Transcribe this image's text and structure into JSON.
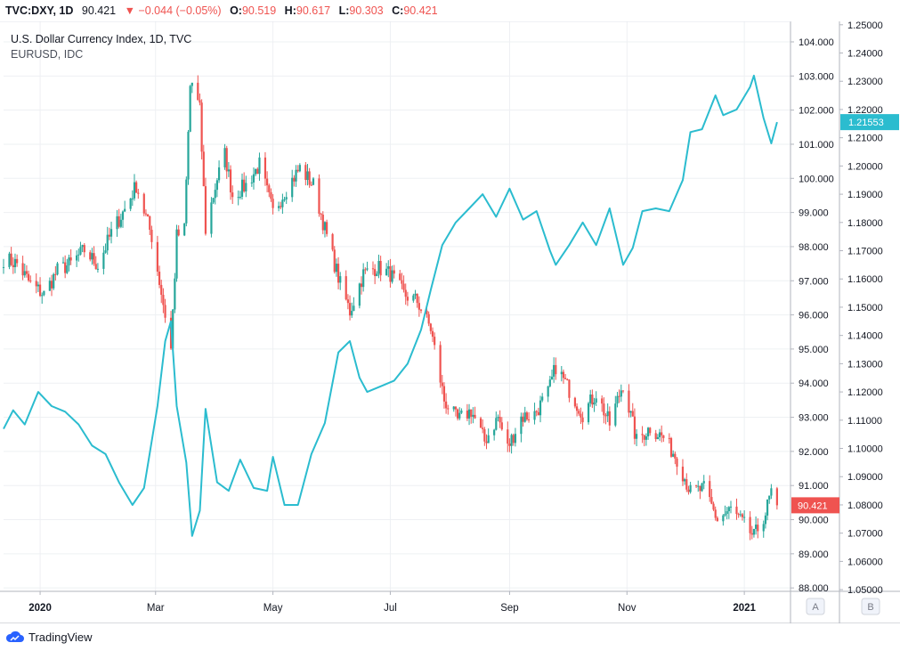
{
  "header": {
    "symbol": "TVC:DXY, 1D",
    "last": "90.421",
    "change": "▼ −0.044 (−0.05%)",
    "o_label": "O:",
    "o_value": "90.519",
    "h_label": "H:",
    "h_value": "90.617",
    "l_label": "L:",
    "l_value": "90.303",
    "c_label": "C:",
    "c_value": "90.421"
  },
  "legend": {
    "main": "U.S. Dollar Currency Index, 1D, TVC",
    "secondary": "EURUSD, IDC"
  },
  "footer": {
    "brand": "TradingView"
  },
  "colors": {
    "up": "#26a69a",
    "down": "#ef5350",
    "eurusd": "#2bbccf",
    "grid": "#eef0f3",
    "axis": "#b2b5be",
    "text": "#131722"
  },
  "icons": {
    "brand_logo": "tradingview-cloud-icon"
  },
  "chart_data": {
    "type": "line",
    "title": "U.S. Dollar Currency Index, 1D, TVC",
    "x_tick_labels": [
      "2020",
      "Mar",
      "May",
      "Jul",
      "Sep",
      "Nov",
      "2021"
    ],
    "x_range": [
      "2019-12-13",
      "2021-01-25"
    ],
    "y_axis_left_labels": [
      "104.000",
      "103.000",
      "102.000",
      "101.000",
      "100.000",
      "99.000",
      "98.000",
      "97.000",
      "96.000",
      "95.000",
      "94.000",
      "93.000",
      "92.000",
      "91.000",
      "90.000",
      "89.000",
      "88.000"
    ],
    "y_axis_right_labels": [
      "1.25000",
      "1.24000",
      "1.23000",
      "1.22000",
      "1.21000",
      "1.20000",
      "1.19000",
      "1.18000",
      "1.17000",
      "1.16000",
      "1.15000",
      "1.14000",
      "1.13000",
      "1.12000",
      "1.11000",
      "1.10000",
      "1.09000",
      "1.08000",
      "1.07000",
      "1.06000",
      "1.05000"
    ],
    "ylim_left": [
      87.9,
      104.6
    ],
    "ylim_right": [
      1.0494,
      1.2512
    ],
    "scale_buttons": [
      "A",
      "B"
    ],
    "grid": true,
    "last_price_labels": {
      "dxy": "90.421",
      "eurusd": "1.21553"
    },
    "series": [
      {
        "name": "DXY",
        "type": "candlestick",
        "axis": "left",
        "points": [
          [
            "2019-12-13",
            97.65
          ],
          [
            "2019-12-20",
            97.5
          ],
          [
            "2019-12-27",
            96.9
          ],
          [
            "2020-01-03",
            96.6
          ],
          [
            "2020-01-10",
            97.3
          ],
          [
            "2020-01-17",
            97.5
          ],
          [
            "2020-01-24",
            97.9
          ],
          [
            "2020-01-31",
            97.45
          ],
          [
            "2020-02-07",
            98.4
          ],
          [
            "2020-02-14",
            99.1
          ],
          [
            "2020-02-20",
            99.8
          ],
          [
            "2020-02-28",
            98.3
          ],
          [
            "2020-03-06",
            96.0
          ],
          [
            "2020-03-09",
            95.0
          ],
          [
            "2020-03-12",
            98.3
          ],
          [
            "2020-03-16",
            98.5
          ],
          [
            "2020-03-19",
            102.7
          ],
          [
            "2020-03-20",
            102.8
          ],
          [
            "2020-03-24",
            102.0
          ],
          [
            "2020-03-27",
            98.5
          ],
          [
            "2020-04-02",
            100.0
          ],
          [
            "2020-04-06",
            100.7
          ],
          [
            "2020-04-10",
            99.5
          ],
          [
            "2020-04-17",
            99.8
          ],
          [
            "2020-04-24",
            100.4
          ],
          [
            "2020-05-01",
            99.0
          ],
          [
            "2020-05-08",
            99.7
          ],
          [
            "2020-05-15",
            100.3
          ],
          [
            "2020-05-22",
            99.8
          ],
          [
            "2020-05-29",
            98.3
          ],
          [
            "2020-06-05",
            96.9
          ],
          [
            "2020-06-10",
            96.1
          ],
          [
            "2020-06-17",
            97.2
          ],
          [
            "2020-06-24",
            97.4
          ],
          [
            "2020-07-01",
            97.2
          ],
          [
            "2020-07-08",
            96.6
          ],
          [
            "2020-07-15",
            96.4
          ],
          [
            "2020-07-22",
            95.6
          ],
          [
            "2020-07-29",
            93.5
          ],
          [
            "2020-08-05",
            92.9
          ],
          [
            "2020-08-12",
            93.2
          ],
          [
            "2020-08-19",
            92.3
          ],
          [
            "2020-08-26",
            93.0
          ],
          [
            "2020-08-31",
            92.1
          ],
          [
            "2020-09-07",
            93.0
          ],
          [
            "2020-09-14",
            93.1
          ],
          [
            "2020-09-21",
            93.7
          ],
          [
            "2020-09-25",
            94.5
          ],
          [
            "2020-10-02",
            93.8
          ],
          [
            "2020-10-09",
            93.1
          ],
          [
            "2020-10-16",
            93.7
          ],
          [
            "2020-10-23",
            92.8
          ],
          [
            "2020-10-30",
            94.0
          ],
          [
            "2020-11-06",
            92.3
          ],
          [
            "2020-11-13",
            92.7
          ],
          [
            "2020-11-20",
            92.4
          ],
          [
            "2020-11-27",
            91.8
          ],
          [
            "2020-12-04",
            90.8
          ],
          [
            "2020-12-11",
            90.9
          ],
          [
            "2020-12-18",
            90.0
          ],
          [
            "2020-12-25",
            90.3
          ],
          [
            "2020-12-31",
            89.9
          ],
          [
            "2021-01-06",
            89.5
          ],
          [
            "2021-01-12",
            90.2
          ],
          [
            "2021-01-15",
            90.8
          ],
          [
            "2021-01-18",
            90.421
          ]
        ]
      },
      {
        "name": "EURUSD",
        "type": "line",
        "axis": "right",
        "points": [
          [
            "2019-12-13",
            1.1069
          ],
          [
            "2019-12-18",
            1.1135
          ],
          [
            "2019-12-24",
            1.1085
          ],
          [
            "2019-12-31",
            1.12
          ],
          [
            "2020-01-07",
            1.115
          ],
          [
            "2020-01-14",
            1.113
          ],
          [
            "2020-01-21",
            1.1085
          ],
          [
            "2020-01-28",
            1.101
          ],
          [
            "2020-02-04",
            1.098
          ],
          [
            "2020-02-11",
            1.088
          ],
          [
            "2020-02-18",
            1.08
          ],
          [
            "2020-02-24",
            1.086
          ],
          [
            "2020-03-02",
            1.115
          ],
          [
            "2020-03-06",
            1.138
          ],
          [
            "2020-03-09",
            1.145
          ],
          [
            "2020-03-12",
            1.115
          ],
          [
            "2020-03-17",
            1.095
          ],
          [
            "2020-03-20",
            1.069
          ],
          [
            "2020-03-24",
            1.078
          ],
          [
            "2020-03-27",
            1.114
          ],
          [
            "2020-04-02",
            1.088
          ],
          [
            "2020-04-08",
            1.085
          ],
          [
            "2020-04-14",
            1.096
          ],
          [
            "2020-04-21",
            1.086
          ],
          [
            "2020-04-28",
            1.085
          ],
          [
            "2020-05-01",
            1.097
          ],
          [
            "2020-05-07",
            1.08
          ],
          [
            "2020-05-14",
            1.08
          ],
          [
            "2020-05-21",
            1.098
          ],
          [
            "2020-05-28",
            1.109
          ],
          [
            "2020-06-04",
            1.134
          ],
          [
            "2020-06-10",
            1.138
          ],
          [
            "2020-06-15",
            1.125
          ],
          [
            "2020-06-19",
            1.12
          ],
          [
            "2020-06-26",
            1.122
          ],
          [
            "2020-07-03",
            1.124
          ],
          [
            "2020-07-10",
            1.13
          ],
          [
            "2020-07-17",
            1.142
          ],
          [
            "2020-07-22",
            1.156
          ],
          [
            "2020-07-28",
            1.172
          ],
          [
            "2020-08-04",
            1.18
          ],
          [
            "2020-08-11",
            1.185
          ],
          [
            "2020-08-18",
            1.19
          ],
          [
            "2020-08-25",
            1.182
          ],
          [
            "2020-09-01",
            1.192
          ],
          [
            "2020-09-08",
            1.181
          ],
          [
            "2020-09-15",
            1.184
          ],
          [
            "2020-09-22",
            1.17
          ],
          [
            "2020-09-25",
            1.165
          ],
          [
            "2020-10-02",
            1.172
          ],
          [
            "2020-10-09",
            1.18
          ],
          [
            "2020-10-16",
            1.172
          ],
          [
            "2020-10-23",
            1.185
          ],
          [
            "2020-10-30",
            1.165
          ],
          [
            "2020-11-04",
            1.171
          ],
          [
            "2020-11-09",
            1.184
          ],
          [
            "2020-11-16",
            1.185
          ],
          [
            "2020-11-23",
            1.184
          ],
          [
            "2020-11-30",
            1.195
          ],
          [
            "2020-12-04",
            1.212
          ],
          [
            "2020-12-10",
            1.213
          ],
          [
            "2020-12-17",
            1.225
          ],
          [
            "2020-12-21",
            1.218
          ],
          [
            "2020-12-28",
            1.22
          ],
          [
            "2021-01-04",
            1.228
          ],
          [
            "2021-01-06",
            1.232
          ],
          [
            "2021-01-11",
            1.217
          ],
          [
            "2021-01-15",
            1.208
          ],
          [
            "2021-01-18",
            1.21553
          ]
        ]
      }
    ]
  }
}
